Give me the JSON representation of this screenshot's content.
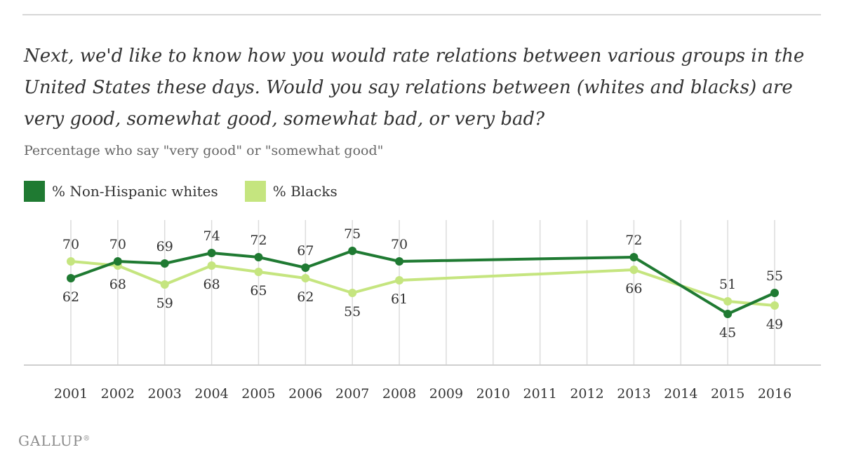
{
  "question": "Next, we'd like to know how you would rate relations between various groups in the United States these days. Would you say relations between (whites and blacks) are very good, somewhat good, somewhat bad, or very bad?",
  "subtitle": "Percentage who say \"very good\" or \"somewhat good\"",
  "legend": [
    {
      "label": "% Non-Hispanic whites",
      "color": "#1f7a32"
    },
    {
      "label": "% Blacks",
      "color": "#c5e57f"
    }
  ],
  "brand": "GALLUP",
  "brand_mark": "®",
  "chart_data": {
    "type": "line",
    "title": "Percentage who say \"very good\" or \"somewhat good\"",
    "x": [
      "2001",
      "2002",
      "2003",
      "2004",
      "2005",
      "2006",
      "2007",
      "2008",
      "2009",
      "2010",
      "2011",
      "2012",
      "2013",
      "2014",
      "2015",
      "2016"
    ],
    "series": [
      {
        "name": "% Non-Hispanic whites",
        "color": "#1f7a32",
        "values": [
          62,
          70,
          69,
          74,
          72,
          67,
          75,
          70,
          null,
          null,
          null,
          null,
          72,
          null,
          45,
          55
        ],
        "labels_above": [
          false,
          true,
          true,
          true,
          true,
          true,
          true,
          true,
          false,
          false,
          false,
          false,
          true,
          false,
          false,
          true
        ]
      },
      {
        "name": "% Blacks",
        "color": "#c5e57f",
        "values": [
          70,
          68,
          59,
          68,
          65,
          62,
          55,
          61,
          null,
          null,
          null,
          null,
          66,
          null,
          51,
          49
        ],
        "labels_above": [
          true,
          false,
          false,
          false,
          false,
          false,
          false,
          false,
          false,
          false,
          false,
          false,
          false,
          false,
          true,
          false
        ]
      }
    ],
    "ylim": [
      20,
      90
    ],
    "xlabel": "",
    "ylabel": "",
    "grid": "vertical"
  }
}
